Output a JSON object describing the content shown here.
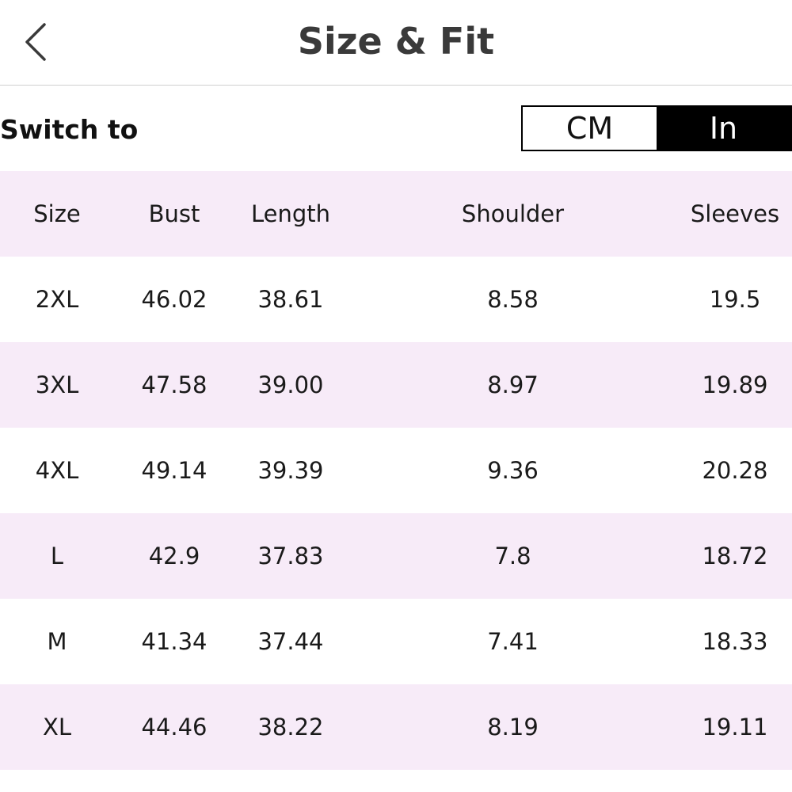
{
  "header": {
    "title": "Size & Fit",
    "back_icon": "chevron-left-icon"
  },
  "unit_switch": {
    "label": "Switch to",
    "options": [
      {
        "label": "CM",
        "selected": false
      },
      {
        "label": "In",
        "selected": true
      }
    ],
    "selected_color": "#000000"
  },
  "size_table": {
    "columns": [
      "Size",
      "Bust",
      "Length",
      "Shoulder",
      "Sleeves"
    ],
    "rows": [
      [
        "2XL",
        "46.02",
        "38.61",
        "8.58",
        "19.5"
      ],
      [
        "3XL",
        "47.58",
        "39.00",
        "8.97",
        "19.89"
      ],
      [
        "4XL",
        "49.14",
        "39.39",
        "9.36",
        "20.28"
      ],
      [
        "L",
        "42.9",
        "37.83",
        "7.8",
        "18.72"
      ],
      [
        "M",
        "41.34",
        "37.44",
        "7.41",
        "18.33"
      ],
      [
        "XL",
        "44.46",
        "38.22",
        "8.19",
        "19.11"
      ]
    ],
    "stripe_color": "#f7ebf8"
  }
}
